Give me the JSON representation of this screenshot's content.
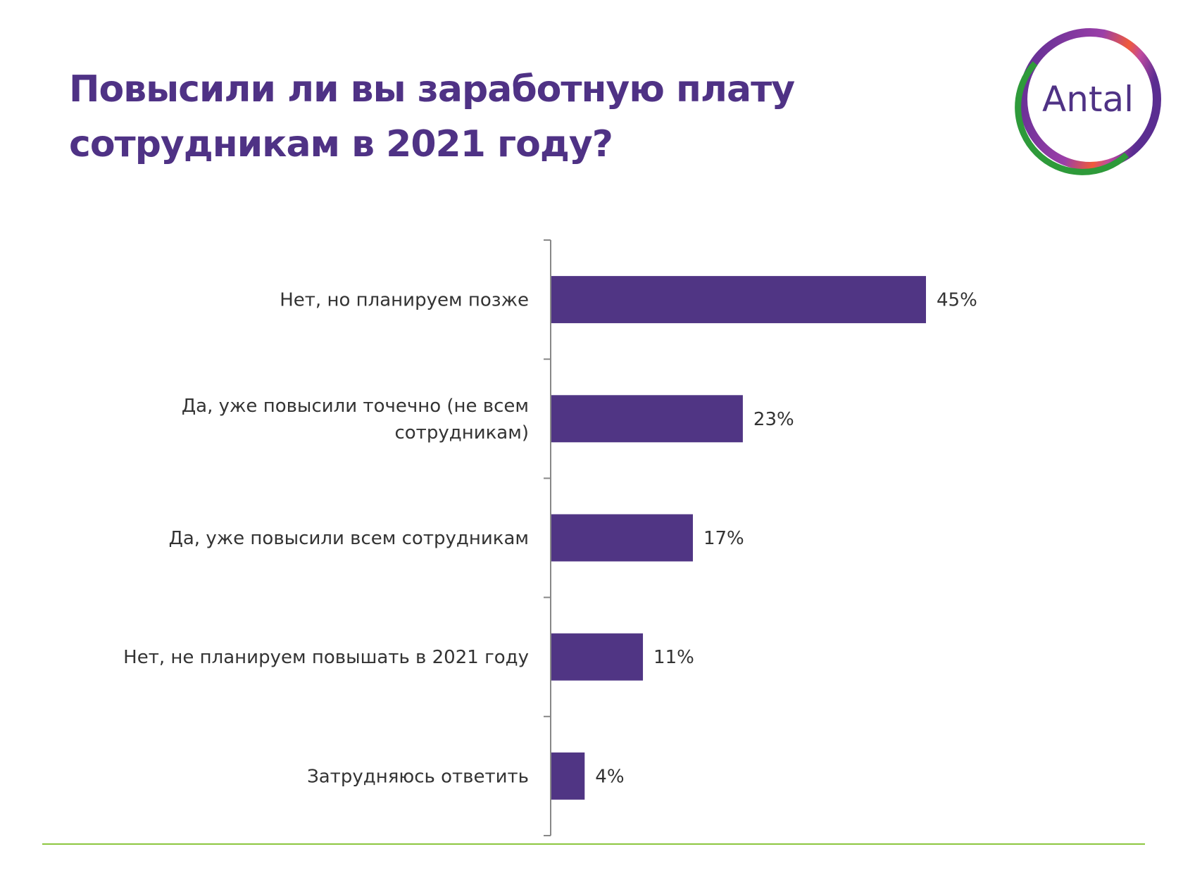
{
  "title_lines": [
    "Повысили ли вы заработную плату",
    "сотрудникам в 2021 году?"
  ],
  "logo": {
    "text": "Antal",
    "color": "#4f3285"
  },
  "colors": {
    "bar": "#503584",
    "title": "#4f3285",
    "rule": "#8cc63f",
    "axis": "#888888"
  },
  "chart_data": {
    "type": "bar",
    "orientation": "horizontal",
    "title": "Повысили ли вы заработную плату сотрудникам в 2021 году?",
    "categories": [
      [
        "Нет, но планируем позже"
      ],
      [
        "Да, уже повысили точечно (не всем",
        "сотрудникам)"
      ],
      [
        "Да, уже повысили всем сотрудникам"
      ],
      [
        "Нет, не планируем повышать в 2021 году"
      ],
      [
        "Затрудняюсь ответить"
      ]
    ],
    "values": [
      45,
      23,
      17,
      11,
      4
    ],
    "labels": [
      "45%",
      "23%",
      "17%",
      "11%",
      "4%"
    ],
    "unit": "%",
    "xlim": [
      0,
      45
    ],
    "grid": false
  }
}
